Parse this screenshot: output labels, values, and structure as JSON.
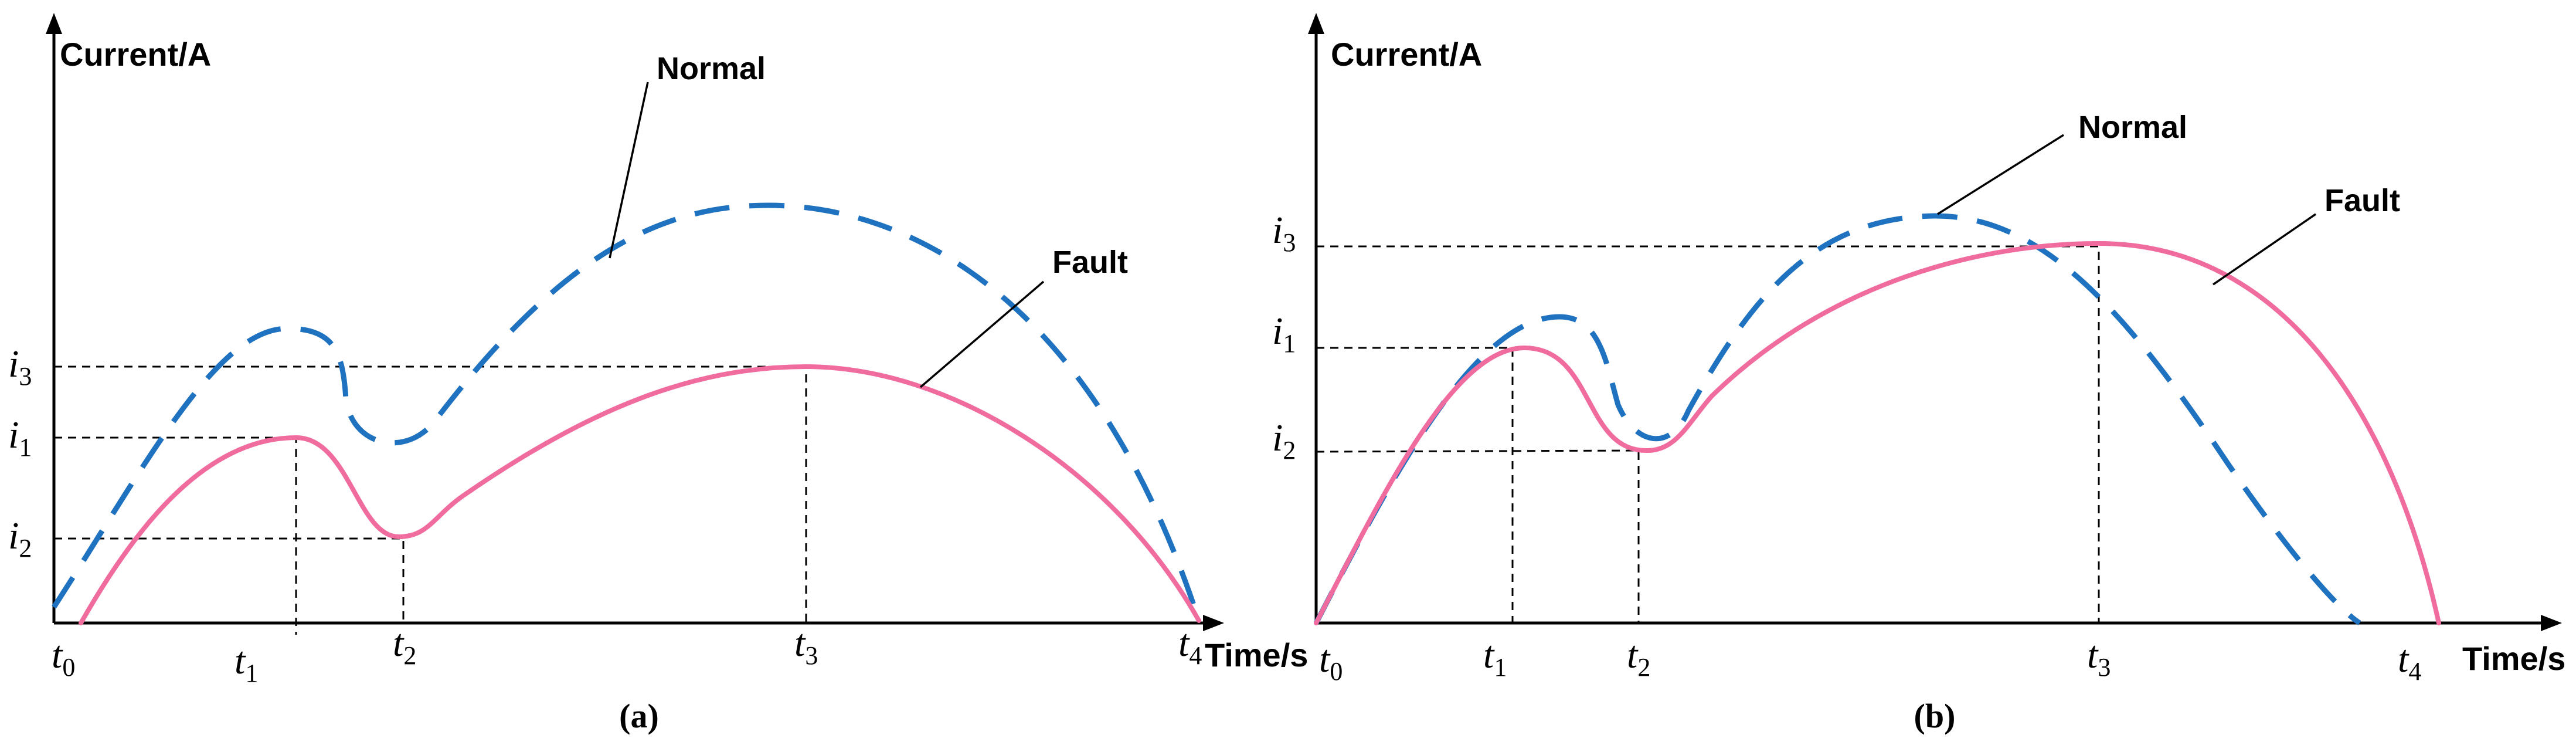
{
  "chart_data": [
    {
      "panel": "(a)",
      "type": "line",
      "ylabel": "Current/A",
      "xlabel": "Time/s",
      "x_ticks": [
        {
          "base": "t",
          "sub": "0"
        },
        {
          "base": "t",
          "sub": "1"
        },
        {
          "base": "t",
          "sub": "2"
        },
        {
          "base": "t",
          "sub": "3"
        },
        {
          "base": "t",
          "sub": "4"
        }
      ],
      "y_ticks": [
        {
          "base": "i",
          "sub": "3"
        },
        {
          "base": "i",
          "sub": "1"
        },
        {
          "base": "i",
          "sub": "2"
        }
      ],
      "series": [
        {
          "name": "Normal",
          "style": "dashed",
          "color": "#1f72c0"
        },
        {
          "name": "Fault",
          "style": "solid",
          "color": "#f06b9e"
        }
      ]
    },
    {
      "panel": "(b)",
      "type": "line",
      "ylabel": "Current/A",
      "xlabel": "Time/s",
      "x_ticks": [
        {
          "base": "t",
          "sub": "0"
        },
        {
          "base": "t",
          "sub": "1"
        },
        {
          "base": "t",
          "sub": "2"
        },
        {
          "base": "t",
          "sub": "3"
        },
        {
          "base": "t",
          "sub": "4"
        }
      ],
      "y_ticks": [
        {
          "base": "i",
          "sub": "3"
        },
        {
          "base": "i",
          "sub": "1"
        },
        {
          "base": "i",
          "sub": "2"
        }
      ],
      "series": [
        {
          "name": "Normal",
          "style": "dashed",
          "color": "#1f72c0"
        },
        {
          "name": "Fault",
          "style": "solid",
          "color": "#f06b9e"
        }
      ]
    }
  ]
}
